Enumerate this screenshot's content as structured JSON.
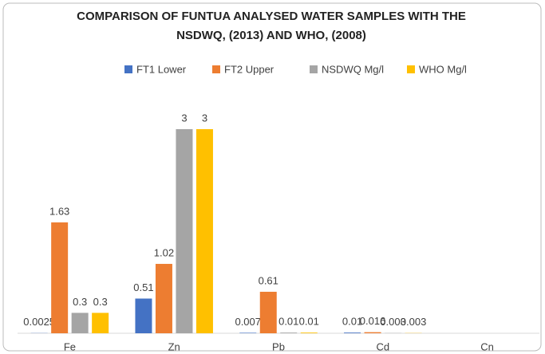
{
  "chart_data": {
    "type": "bar",
    "title": [
      "COMPARISON OF FUNTUA ANALYSED WATER SAMPLES WITH THE",
      "NSDWQ, (2013) AND WHO, (2008)"
    ],
    "categories": [
      "Fe",
      "Zn",
      "Pb",
      "Cd",
      "Cn"
    ],
    "series": [
      {
        "name": "FT1 Lower",
        "color": "#4472c4",
        "values": [
          0.0025,
          0.51,
          0.007,
          0.01,
          null
        ]
      },
      {
        "name": "FT2 Upper",
        "color": "#ed7d31",
        "values": [
          1.63,
          1.02,
          0.61,
          0.016,
          null
        ]
      },
      {
        "name": "NSDWQ Mg/l",
        "color": "#a5a5a5",
        "values": [
          0.3,
          3,
          0.01,
          0.003,
          null
        ]
      },
      {
        "name": "WHO Mg/l",
        "color": "#ffc000",
        "values": [
          0.3,
          3,
          0.01,
          0.003,
          null
        ]
      }
    ],
    "legend": "top"
  }
}
